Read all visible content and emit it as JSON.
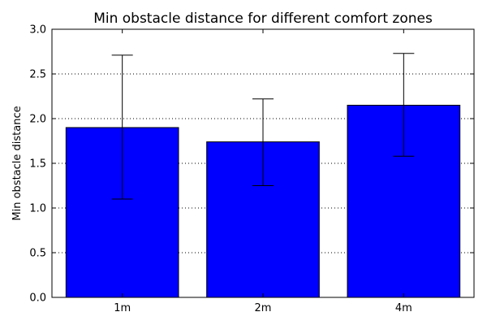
{
  "chart_data": {
    "type": "bar",
    "title": "Min obstacle distance for different comfort zones",
    "xlabel": "",
    "ylabel": "Min obstacle distance",
    "categories": [
      "1m",
      "2m",
      "4m"
    ],
    "values": [
      1.9,
      1.74,
      2.15
    ],
    "error_low": [
      1.1,
      1.25,
      1.58
    ],
    "error_high": [
      2.71,
      2.22,
      2.73
    ],
    "ylim": [
      0,
      3.0
    ],
    "yticks": [
      "0.0",
      "0.5",
      "1.0",
      "1.5",
      "2.0",
      "2.5",
      "3.0"
    ],
    "grid": "horizontal dotted",
    "bar_color": "#0000ff"
  }
}
